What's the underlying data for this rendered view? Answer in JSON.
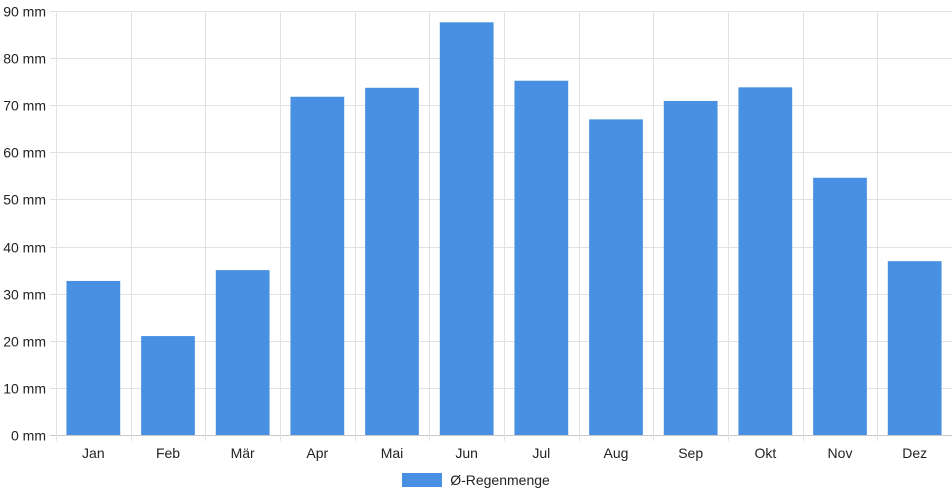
{
  "chart_data": {
    "type": "bar",
    "categories": [
      "Jan",
      "Feb",
      "Mär",
      "Apr",
      "Mai",
      "Jun",
      "Jul",
      "Aug",
      "Sep",
      "Okt",
      "Nov",
      "Dez"
    ],
    "series": [
      {
        "name": "Ø-Regenmenge",
        "values": [
          32.7,
          21.0,
          35.0,
          71.8,
          73.7,
          87.6,
          75.2,
          67.0,
          70.9,
          73.8,
          54.6,
          36.9
        ]
      }
    ],
    "y_unit": "mm",
    "ylim": [
      0,
      90
    ],
    "y_ticks": [
      0,
      10,
      20,
      30,
      40,
      50,
      60,
      70,
      80,
      90
    ],
    "y_tick_labels": [
      "0 mm",
      "10 mm",
      "20 mm",
      "30 mm",
      "40 mm",
      "50 mm",
      "60 mm",
      "70 mm",
      "80 mm",
      "90 mm"
    ],
    "title": "",
    "xlabel": "",
    "ylabel": "",
    "grid": true,
    "legend_position": "bottom-center",
    "colors": {
      "bar": "#4a90e2",
      "grid": "#e2e2e2",
      "axis": "#c8c8c8",
      "text": "#222222"
    }
  }
}
